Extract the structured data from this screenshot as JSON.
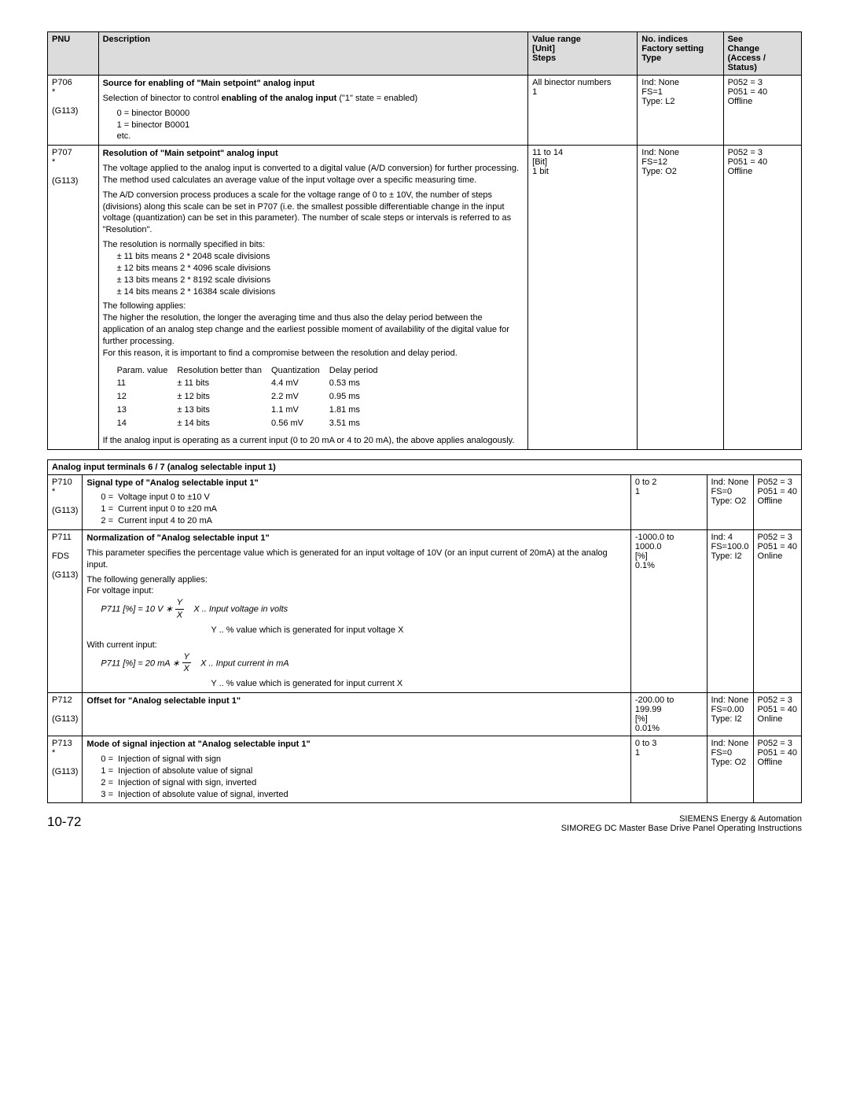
{
  "header": {
    "pnu": "PNU",
    "description": "Description",
    "range": "Value range\n[Unit]\nSteps",
    "indices": "No. indices\nFactory setting\nType",
    "see": "See\nChange\n(Access / Status)"
  },
  "rows": [
    {
      "pnu": "P706\n*\n\n(G113)",
      "title": "Source for enabling of \"Main setpoint\" analog input",
      "desc": [
        "Selection of binector to control <b>enabling of the analog input</b> (\"1\" state = enabled)",
        "<div class=\"indent1\">0 = binector B0000</div><div class=\"indent1\">1 = binector B0001</div><div class=\"indent1\">etc.</div>"
      ],
      "range": "All binector numbers\n1",
      "indices": "Ind: None\nFS=1\nType: L2",
      "see": "P052 = 3\nP051 = 40\nOffline"
    },
    {
      "pnu": "P707\n*\n\n(G113)",
      "title": "Resolution of \"Main setpoint\" analog input",
      "desc": [
        "The voltage applied to the analog input is converted to a digital value (A/D conversion) for further processing. The method used calculates an average value of the input voltage over a specific measuring time.",
        "The A/D conversion process produces a scale for the voltage range of 0 to ± 10V, the number of steps (divisions) along this scale can be set in P707 (i.e. the smallest possible differentiable change in the input voltage (quantization) can be set in this parameter). The number of scale steps or intervals is referred to as \"Resolution\".",
        "The resolution is normally specified in bits:<div class=\"indent1\">± 11 bits means 2 * 2048 scale divisions</div><div class=\"indent1\">± 12 bits means 2 * 4096 scale divisions</div><div class=\"indent1\">± 13 bits means 2 * 8192 scale divisions</div><div class=\"indent1\">± 14 bits means 2 * 16384 scale divisions</div>",
        "The following applies:<br>The higher the resolution, the longer the averaging time and thus also the delay period between the application of an analog step change and the earliest possible moment of availability of the digital value for further processing.<br>For this reason, it is important to find a compromise between the resolution and delay period.",
        "RES_TABLE",
        "If the analog input is operating as a current input (0 to 20 mA or 4 to 20 mA), the above applies analogously."
      ],
      "range": "11 to 14\n[Bit]\n1 bit",
      "indices": "Ind: None\nFS=12\nType: O2",
      "see": "P052 = 3\nP051 = 40\nOffline"
    }
  ],
  "res_table": {
    "headers": [
      "Param. value",
      "Resolution better than",
      "Quantization",
      "Delay period"
    ],
    "rows": [
      [
        "11",
        "± 11 bits",
        "4.4 mV",
        "0.53 ms"
      ],
      [
        "12",
        "± 12 bits",
        "2.2 mV",
        "0.95 ms"
      ],
      [
        "13",
        "± 13 bits",
        "1.1 mV",
        "1.81 ms"
      ],
      [
        "14",
        "± 14 bits",
        "0.56 mV",
        "3.51 ms"
      ]
    ]
  },
  "section2": {
    "title": "Analog input terminals 6 / 7 (analog selectable input 1)",
    "rows": [
      {
        "pnu": "P710\n*\n\n(G113)",
        "title": "Signal type of \"Analog selectable input 1\"",
        "desc": [
          "<div class=\"indent1\">0 =&nbsp;&nbsp;Voltage input 0 to ±10 V</div><div class=\"indent1\">1 =&nbsp;&nbsp;Current input 0 to ±20 mA</div><div class=\"indent1\">2 =&nbsp;&nbsp;Current input 4 to 20 mA</div>"
        ],
        "range": "0 to 2\n1",
        "indices": "Ind: None\nFS=0\nType: O2",
        "see": "P052 = 3\nP051 = 40\nOffline"
      },
      {
        "pnu": "P711\n\nFDS\n\n(G113)",
        "title": "Normalization of \"Analog selectable input 1\"",
        "desc": [
          "This parameter specifies the percentage value which is generated for an input voltage of 10V (or an input current of 20mA) at the analog input.",
          "The following generally applies:<br>For voltage input:",
          "FORMULA1",
          "With current input:",
          "FORMULA2"
        ],
        "range": "-1000.0 to 1000.0\n[%]\n0.1%",
        "indices": "Ind: 4\nFS=100.0\nType: I2",
        "see": "P052 = 3\nP051 = 40\nOnline"
      },
      {
        "pnu": "P712\n\n(G113)",
        "title": "Offset for \"Analog selectable input 1\"",
        "desc": [],
        "range": "-200.00 to 199.99\n[%]\n0.01%",
        "indices": "Ind: None\nFS=0.00\nType: I2",
        "see": "P052 = 3\nP051 = 40\nOnline"
      },
      {
        "pnu": "P713\n*\n\n(G113)",
        "title": "Mode of signal injection at \"Analog selectable input 1\"",
        "desc": [
          "<div class=\"indent1\">0 =&nbsp;&nbsp;Injection of signal with sign</div><div class=\"indent1\">1 =&nbsp;&nbsp;Injection of absolute value of signal</div><div class=\"indent1\">2 =&nbsp;&nbsp;Injection of signal with sign, inverted</div><div class=\"indent1\">3 =&nbsp;&nbsp;Injection of absolute value of signal, inverted</div>"
        ],
        "range": "0 to 3\n1",
        "indices": "Ind: None\nFS=0\nType: O2",
        "see": "P052 = 3\nP051 = 40\nOffline"
      }
    ]
  },
  "formula1": {
    "lhs": "P711 [%] = 10 V ∗",
    "num": "Y",
    "den": "X",
    "xlabel": "X .. Input voltage in volts",
    "ylabel": "Y .. % value which is generated for input voltage X"
  },
  "formula2": {
    "lhs": "P711 [%] = 20 mA ∗",
    "num": "Y",
    "den": "X",
    "xlabel": "X .. Input current in mA",
    "ylabel": "Y .. % value which is generated for input current X"
  },
  "footer": {
    "page": "10-72",
    "right1": "SIEMENS Energy & Automation",
    "right2": "SIMOREG DC Master Base Drive Panel  Operating Instructions"
  }
}
